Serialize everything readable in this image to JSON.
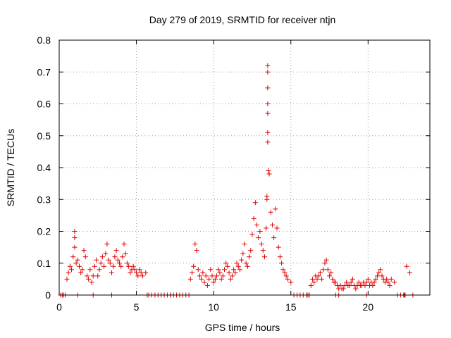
{
  "chart_data": {
    "type": "scatter",
    "title": "Day 279 of 2019, SRMTID for receiver ntjn",
    "xlabel": "GPS time / hours",
    "ylabel": "SRMTID / TECUs",
    "xlim": [
      0,
      24
    ],
    "ylim": [
      0,
      0.8
    ],
    "xticks": [
      0,
      5,
      10,
      15,
      20
    ],
    "yticks": [
      0,
      0.1,
      0.2,
      0.3,
      0.4,
      0.5,
      0.6,
      0.7,
      0.8
    ],
    "xtick_labels": [
      "0",
      "5",
      "10",
      "15",
      "20"
    ],
    "ytick_labels": [
      "0",
      "0.1",
      "0.2",
      "0.3",
      "0.4",
      "0.5",
      "0.6",
      "0.7",
      "0.8"
    ],
    "grid": true,
    "marker": "+",
    "color": "#e00000",
    "series": [
      {
        "name": "SRMTID",
        "x": [
          0.1,
          0.2,
          0.3,
          0.4,
          0.5,
          0.6,
          0.7,
          0.8,
          0.9,
          1.0,
          1.0,
          1.0,
          1.1,
          1.2,
          1.3,
          1.4,
          1.5,
          1.6,
          1.7,
          1.8,
          1.9,
          2.0,
          2.1,
          2.2,
          2.3,
          2.4,
          2.5,
          2.6,
          2.7,
          2.8,
          2.9,
          3.0,
          3.1,
          3.2,
          3.3,
          3.4,
          3.5,
          3.6,
          3.7,
          3.8,
          3.9,
          4.0,
          4.1,
          4.2,
          4.3,
          4.4,
          4.5,
          4.6,
          4.7,
          4.8,
          4.9,
          5.0,
          5.1,
          5.2,
          5.3,
          5.4,
          5.6,
          5.7,
          5.8,
          6.0,
          6.2,
          6.4,
          6.6,
          6.8,
          7.0,
          7.2,
          7.4,
          7.6,
          7.8,
          8.0,
          8.2,
          8.4,
          8.5,
          8.6,
          8.7,
          8.8,
          8.9,
          9.0,
          9.1,
          9.2,
          9.3,
          9.4,
          9.5,
          9.6,
          9.7,
          9.8,
          9.9,
          10.0,
          10.1,
          10.2,
          10.3,
          10.4,
          10.5,
          10.6,
          10.7,
          10.8,
          10.9,
          11.0,
          11.1,
          11.2,
          11.3,
          11.4,
          11.5,
          11.6,
          11.7,
          11.8,
          11.9,
          12.0,
          12.1,
          12.2,
          12.3,
          12.4,
          12.5,
          12.6,
          12.7,
          12.8,
          12.9,
          13.0,
          13.1,
          13.2,
          13.3,
          13.4,
          13.45,
          13.45,
          13.5,
          13.5,
          13.5,
          13.5,
          13.5,
          13.5,
          13.5,
          13.55,
          13.6,
          13.7,
          13.8,
          13.9,
          14.0,
          14.1,
          14.2,
          14.3,
          14.4,
          14.5,
          14.6,
          14.7,
          14.8,
          15.0,
          15.2,
          15.4,
          15.6,
          15.8,
          16.0,
          16.1,
          16.2,
          16.3,
          16.4,
          16.5,
          16.6,
          16.7,
          16.8,
          16.9,
          17.0,
          17.1,
          17.2,
          17.3,
          17.4,
          17.5,
          17.6,
          17.7,
          17.8,
          17.9,
          18.0,
          18.1,
          18.2,
          18.3,
          18.4,
          18.5,
          18.6,
          18.7,
          18.8,
          18.9,
          19.0,
          19.1,
          19.2,
          19.3,
          19.4,
          19.5,
          19.6,
          19.7,
          19.8,
          19.9,
          20.0,
          20.1,
          20.2,
          20.3,
          20.4,
          20.5,
          20.6,
          20.7,
          20.8,
          20.9,
          21.0,
          21.1,
          21.2,
          21.3,
          21.4,
          21.5,
          21.7,
          21.9,
          22.1,
          22.3,
          22.35,
          22.4,
          22.5,
          22.7,
          22.9,
          1.2,
          2.2,
          3.4,
          7.2,
          17.9,
          18.1,
          19.9
        ],
        "y": [
          0.0,
          0.0,
          0.0,
          0.0,
          0.05,
          0.07,
          0.09,
          0.08,
          0.12,
          0.2,
          0.18,
          0.15,
          0.1,
          0.11,
          0.09,
          0.07,
          0.08,
          0.14,
          0.12,
          0.06,
          0.05,
          0.08,
          0.04,
          0.06,
          0.09,
          0.11,
          0.06,
          0.08,
          0.1,
          0.12,
          0.09,
          0.13,
          0.16,
          0.11,
          0.1,
          0.07,
          0.09,
          0.12,
          0.14,
          0.11,
          0.1,
          0.09,
          0.12,
          0.16,
          0.13,
          0.1,
          0.09,
          0.07,
          0.08,
          0.09,
          0.08,
          0.07,
          0.06,
          0.08,
          0.07,
          0.06,
          0.07,
          0.0,
          0.0,
          0.0,
          0.0,
          0.0,
          0.0,
          0.0,
          0.0,
          0.0,
          0.0,
          0.0,
          0.0,
          0.0,
          0.0,
          0.0,
          0.05,
          0.07,
          0.09,
          0.16,
          0.14,
          0.08,
          0.06,
          0.05,
          0.07,
          0.04,
          0.06,
          0.03,
          0.05,
          0.08,
          0.06,
          0.04,
          0.05,
          0.06,
          0.08,
          0.07,
          0.05,
          0.06,
          0.08,
          0.1,
          0.09,
          0.07,
          0.05,
          0.06,
          0.08,
          0.07,
          0.1,
          0.09,
          0.08,
          0.11,
          0.13,
          0.16,
          0.1,
          0.09,
          0.12,
          0.14,
          0.19,
          0.24,
          0.29,
          0.22,
          0.18,
          0.2,
          0.16,
          0.14,
          0.12,
          0.21,
          0.3,
          0.31,
          0.7,
          0.72,
          0.65,
          0.6,
          0.57,
          0.51,
          0.48,
          0.39,
          0.38,
          0.26,
          0.22,
          0.18,
          0.27,
          0.21,
          0.15,
          0.12,
          0.1,
          0.08,
          0.07,
          0.06,
          0.05,
          0.04,
          0.0,
          0.0,
          0.0,
          0.0,
          0.0,
          0.0,
          0.0,
          0.03,
          0.05,
          0.04,
          0.06,
          0.05,
          0.06,
          0.07,
          0.05,
          0.08,
          0.1,
          0.11,
          0.08,
          0.06,
          0.07,
          0.05,
          0.04,
          0.04,
          0.03,
          0.02,
          0.03,
          0.02,
          0.02,
          0.03,
          0.04,
          0.03,
          0.03,
          0.04,
          0.05,
          0.03,
          0.02,
          0.03,
          0.04,
          0.03,
          0.03,
          0.04,
          0.03,
          0.04,
          0.05,
          0.03,
          0.04,
          0.03,
          0.04,
          0.05,
          0.06,
          0.07,
          0.08,
          0.06,
          0.05,
          0.04,
          0.05,
          0.04,
          0.03,
          0.05,
          0.04,
          0.0,
          0.0,
          0.0,
          0.0,
          0.0,
          0.09,
          0.07,
          0.0,
          0.0,
          0.0,
          0.0,
          0.0,
          0.0,
          0.0,
          0.0
        ]
      }
    ]
  }
}
